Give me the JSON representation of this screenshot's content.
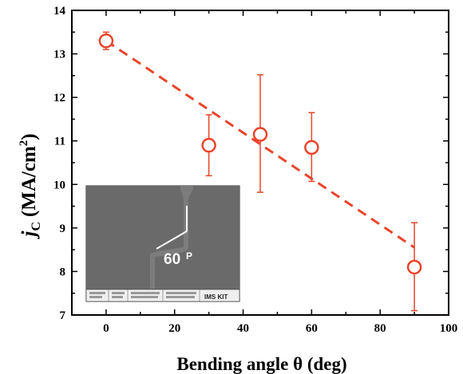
{
  "chart_data": {
    "type": "scatter",
    "xlabel": "Bending angle θ (deg)",
    "ylabel": {
      "symbol": "j",
      "subscript": "C",
      "units": "(MA/cm",
      "superscript": "2",
      "close": ")"
    },
    "xlim": [
      -10,
      100
    ],
    "ylim": [
      7,
      14
    ],
    "x_ticks": [
      0,
      20,
      40,
      60,
      80,
      100
    ],
    "y_ticks": [
      7,
      8,
      9,
      10,
      11,
      12,
      13,
      14
    ],
    "x_tick_labels": [
      "0",
      "20",
      "40",
      "60",
      "80",
      "100"
    ],
    "y_tick_labels": [
      "7",
      "8",
      "9",
      "10",
      "11",
      "12",
      "13",
      "14"
    ],
    "grid": false,
    "points": [
      {
        "x": 0,
        "y": 13.3,
        "err_low": 13.1,
        "err_high": 13.5
      },
      {
        "x": 30,
        "y": 10.9,
        "err_low": 10.2,
        "err_high": 11.6
      },
      {
        "x": 45,
        "y": 11.15,
        "err_low": 9.82,
        "err_high": 12.52
      },
      {
        "x": 60,
        "y": 10.85,
        "err_low": 10.07,
        "err_high": 11.65
      },
      {
        "x": 90,
        "y": 8.1,
        "err_low": 7.1,
        "err_high": 9.12
      }
    ],
    "fit_line": {
      "x": [
        0,
        90
      ],
      "y": [
        13.3,
        8.55
      ],
      "style": "dashed"
    },
    "series_color": "#e8452a",
    "inset": {
      "angle_label": "60",
      "angle_unit_glyph": "P",
      "footer_brand": "IMS KIT"
    }
  }
}
